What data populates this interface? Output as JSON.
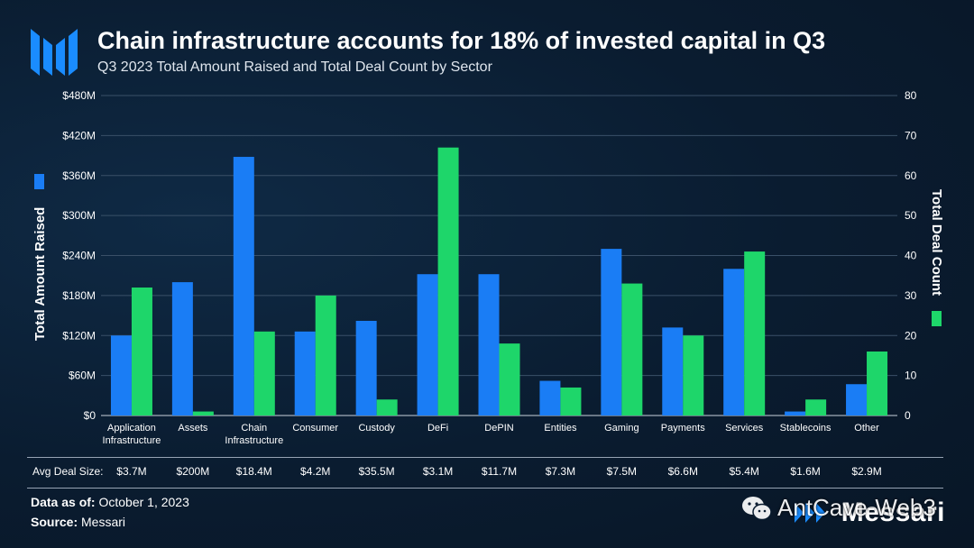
{
  "header": {
    "title": "Chain infrastructure accounts for 18% of invested capital in Q3",
    "subtitle": "Q3 2023 Total Amount Raised and Total Deal Count by Sector"
  },
  "colors": {
    "amount": "#1a7df5",
    "deals": "#1ed66a",
    "grid": "#3a5068",
    "text": "#ffffff"
  },
  "chart_data": {
    "type": "bar",
    "title": "Chain infrastructure accounts for 18% of invested capital in Q3",
    "subtitle": "Q3 2023 Total Amount Raised and Total Deal Count by Sector",
    "categories": [
      "Application Infrastructure",
      "Assets",
      "Chain Infrastructure",
      "Consumer",
      "Custody",
      "DeFi",
      "DePIN",
      "Entities",
      "Gaming",
      "Payments",
      "Services",
      "Stablecoins",
      "Other"
    ],
    "category_lines": [
      [
        "Application",
        "Infrastructure"
      ],
      [
        "Assets"
      ],
      [
        "Chain",
        "Infrastructure"
      ],
      [
        "Consumer"
      ],
      [
        "Custody"
      ],
      [
        "DeFi"
      ],
      [
        "DePIN"
      ],
      [
        "Entities"
      ],
      [
        "Gaming"
      ],
      [
        "Payments"
      ],
      [
        "Services"
      ],
      [
        "Stablecoins"
      ],
      [
        "Other"
      ]
    ],
    "series": [
      {
        "name": "Total Amount Raised",
        "axis": "left",
        "color": "#1a7df5",
        "values": [
          120,
          200,
          388,
          126,
          142,
          212,
          212,
          52,
          250,
          132,
          220,
          6,
          47
        ]
      },
      {
        "name": "Total Deal Count",
        "axis": "right",
        "color": "#1ed66a",
        "values": [
          32,
          1,
          21,
          30,
          4,
          67,
          18,
          7,
          33,
          20,
          41,
          4,
          16
        ]
      }
    ],
    "ylabel_left": "Total Amount Raised",
    "ylabel_right": "Total Deal Count",
    "ylim_left": [
      0,
      480
    ],
    "ylim_right": [
      0,
      80
    ],
    "yticks_left": [
      "$0",
      "$60M",
      "$120M",
      "$180M",
      "$240M",
      "$300M",
      "$360M",
      "$420M",
      "$480M"
    ],
    "yticks_right": [
      "0",
      "10",
      "20",
      "30",
      "40",
      "50",
      "60",
      "70",
      "80"
    ],
    "grid": true,
    "avg_deal_size_label": "Avg Deal Size:",
    "avg_deal_size": [
      "$3.7M",
      "$200M",
      "$18.4M",
      "$4.2M",
      "$35.5M",
      "$3.1M",
      "$11.7M",
      "$7.3M",
      "$7.5M",
      "$6.6M",
      "$5.4M",
      "$1.6M",
      "$2.9M"
    ]
  },
  "footer": {
    "data_as_of_label": "Data as of:",
    "data_as_of_value": "October 1, 2023",
    "source_label": "Source:",
    "source_value": "Messari"
  },
  "brand": {
    "name": "Messari"
  },
  "watermark": {
    "text": "AntCave-Web3"
  }
}
